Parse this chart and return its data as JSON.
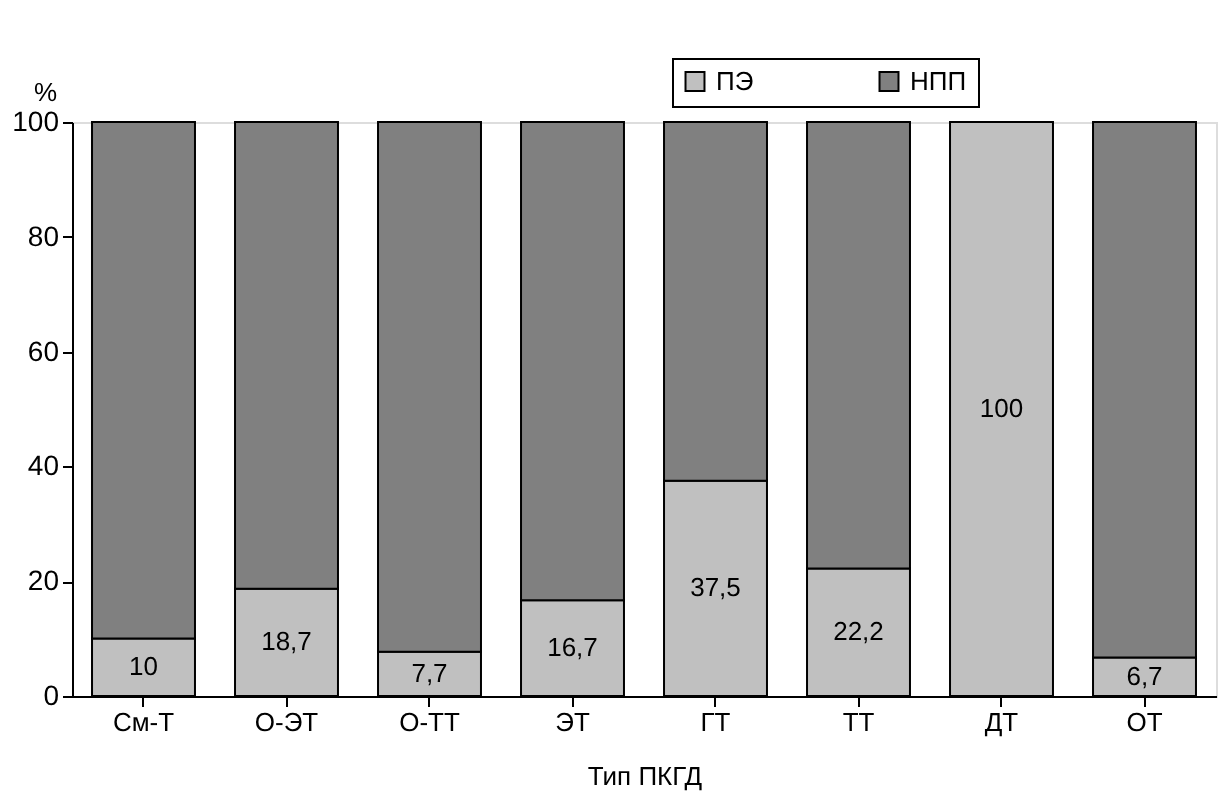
{
  "chart_data": {
    "type": "bar",
    "stacked": true,
    "xlabel": "Тип ПКГД",
    "ylabel": "%",
    "categories": [
      "См-Т",
      "О-ЭТ",
      "О-ТТ",
      "ЭТ",
      "ГТ",
      "ТТ",
      "ДТ",
      "ОТ"
    ],
    "series": [
      {
        "name": "ПЭ",
        "color": "#c0c0c0",
        "values": [
          10,
          18.7,
          7.7,
          16.7,
          37.5,
          22.2,
          100,
          6.7
        ],
        "value_labels": [
          "10",
          "18,7",
          "7,7",
          "16,7",
          "37,5",
          "22,2",
          "100",
          "6,7"
        ]
      },
      {
        "name": "НПП",
        "color": "#808080",
        "values": [
          90,
          81.3,
          92.3,
          83.3,
          62.5,
          77.8,
          null,
          93.3
        ]
      }
    ],
    "ylim": [
      0,
      100
    ],
    "yticks": [
      0,
      20,
      40,
      60,
      80,
      100
    ],
    "grid": false,
    "legend": "top right"
  }
}
